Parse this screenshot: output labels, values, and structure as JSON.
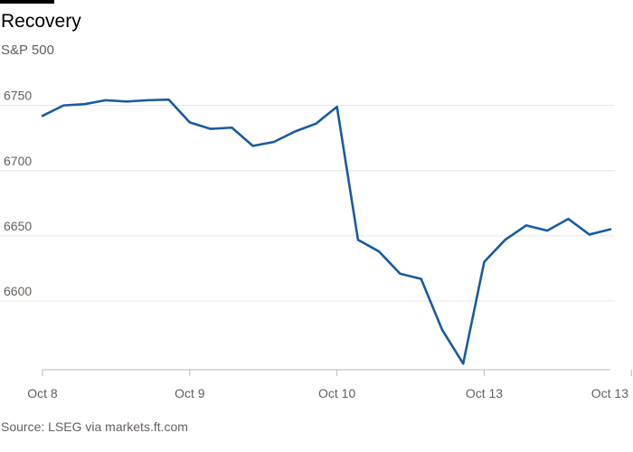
{
  "header": {
    "title": "Recovery",
    "subtitle": "S&P 500"
  },
  "footer": {
    "source": "Source: LSEG via markets.ft.com"
  },
  "colors": {
    "line": "#1b5aa0",
    "grid": "#e9e4df",
    "axis": "#bfbab5"
  },
  "chart_data": {
    "type": "line",
    "title": "Recovery",
    "subtitle": "S&P 500",
    "xlabel": "",
    "ylabel": "",
    "x_ticks": [
      {
        "label": "Oct 8",
        "index": 0
      },
      {
        "label": "Oct 9",
        "index": 7
      },
      {
        "label": "Oct 10",
        "index": 14
      },
      {
        "label": "Oct 13",
        "index": 21
      },
      {
        "label": "Oct 13",
        "index": 28
      }
    ],
    "y_ticks": [
      6600,
      6650,
      6700,
      6750
    ],
    "ylim": [
      6548,
      6765
    ],
    "grid": true,
    "series": [
      {
        "values": [
          6742,
          6750,
          6751,
          6754,
          6753,
          6754,
          6754.5,
          6737,
          6732,
          6733,
          6719,
          6722,
          6730,
          6736,
          6749,
          6647,
          6638,
          6621,
          6617,
          6578,
          6552,
          6630,
          6647,
          6658,
          6654,
          6663,
          6651,
          6655
        ]
      }
    ]
  }
}
